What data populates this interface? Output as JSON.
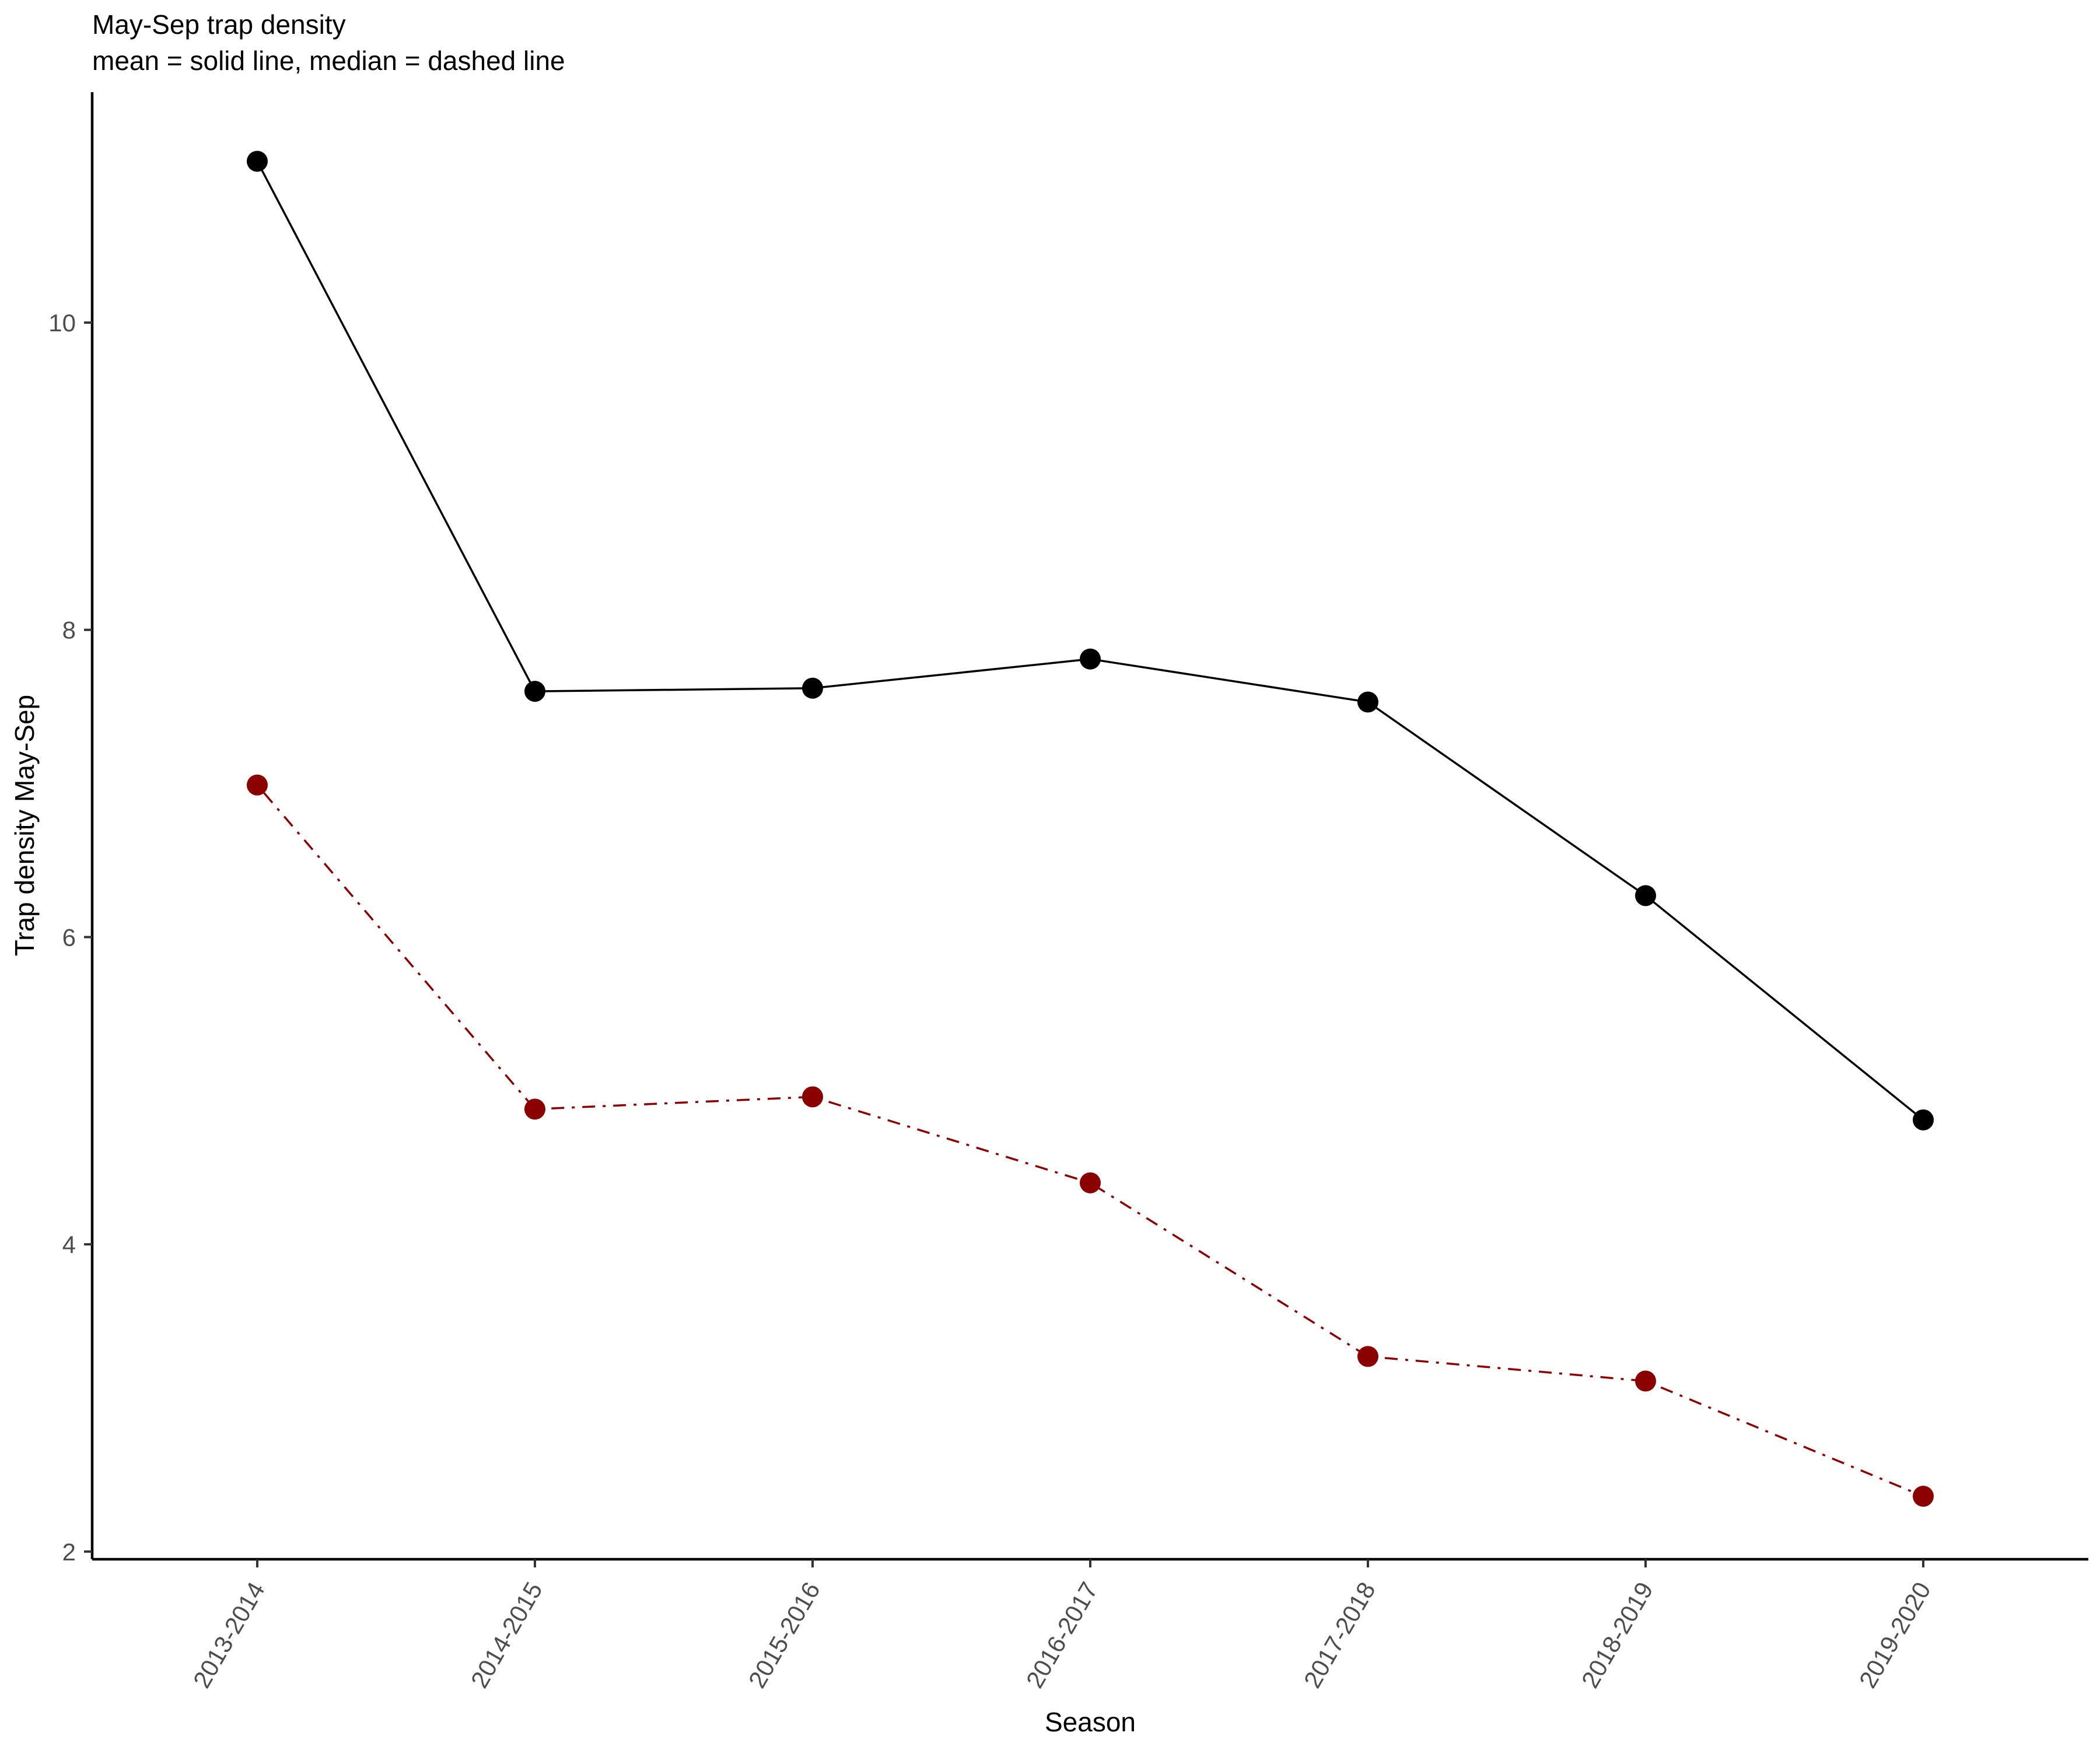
{
  "chart_data": {
    "type": "line",
    "title": "May-Sep trap density",
    "subtitle": "mean = solid line, median = dashed line",
    "xlabel": "Season",
    "ylabel": "Trap density May-Sep",
    "categories": [
      "2013-2014",
      "2014-2015",
      "2015-2016",
      "2016-2017",
      "2017-2018",
      "2018-2019",
      "2019-2020"
    ],
    "y_ticks": [
      2,
      4,
      6,
      8,
      10
    ],
    "ylim": [
      1.95,
      11.5
    ],
    "grid": false,
    "series": [
      {
        "values": [
          11.05,
          7.6,
          7.62,
          7.81,
          7.53,
          6.27,
          4.81
        ],
        "color": "#000000",
        "line_style": "solid"
      },
      {
        "values": [
          6.99,
          4.88,
          4.96,
          4.4,
          3.27,
          3.11,
          2.36
        ],
        "color": "#8b0000",
        "line_style": "dot-dash"
      }
    ]
  }
}
